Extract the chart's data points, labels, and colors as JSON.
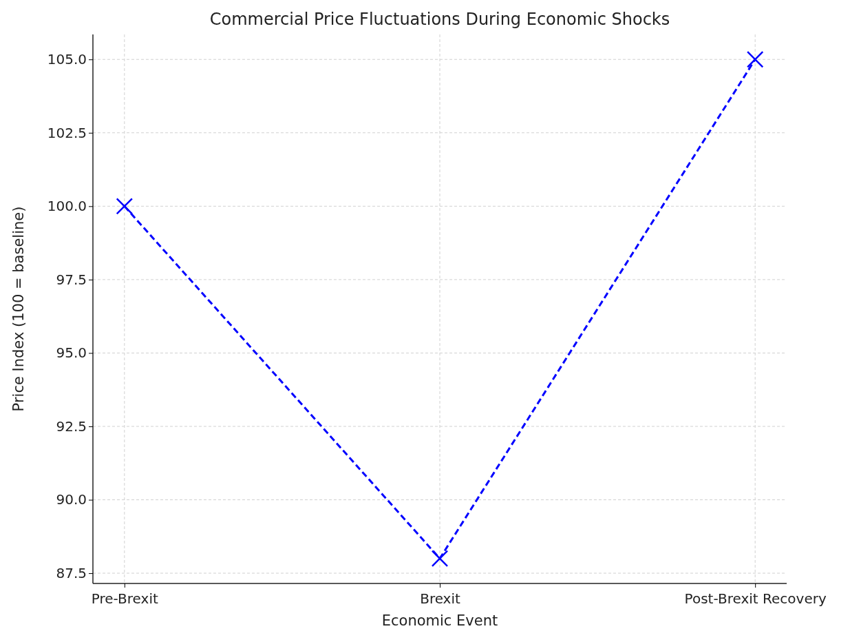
{
  "chart_data": {
    "type": "line",
    "title": "Commercial Price Fluctuations During Economic Shocks",
    "xlabel": "Economic Event",
    "ylabel": "Price Index (100 = baseline)",
    "categories": [
      "Pre-Brexit",
      "Brexit",
      "Post-Brexit Recovery"
    ],
    "series": [
      {
        "color": "#0000ff",
        "values": [
          100,
          88,
          105
        ]
      }
    ],
    "ylim": [
      87.15,
      105.85
    ],
    "yticks": [
      {
        "value": 87.5,
        "label": "87.5"
      },
      {
        "value": 90,
        "label": "90.0"
      },
      {
        "value": 92.5,
        "label": "92.5"
      },
      {
        "value": 95,
        "label": "95.0"
      },
      {
        "value": 97.5,
        "label": "97.5"
      },
      {
        "value": 100,
        "label": "100.0"
      },
      {
        "value": 102.5,
        "label": "102.5"
      },
      {
        "value": 105,
        "label": "105.0"
      }
    ],
    "grid": true,
    "marker": "cross",
    "line_style": "dashed"
  }
}
